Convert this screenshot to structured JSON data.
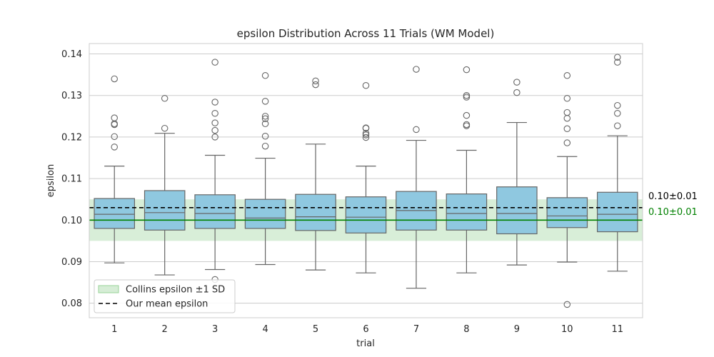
{
  "chart_data": {
    "type": "box",
    "title": "epsilon Distribution Across 11 Trials (WM Model)",
    "xlabel": "trial",
    "ylabel": "epsilon",
    "ylim": [
      0.0765,
      0.1425
    ],
    "yticks": [
      0.08,
      0.09,
      0.1,
      0.11,
      0.12,
      0.13,
      0.14
    ],
    "ytick_labels": [
      "0.08",
      "0.09",
      "0.10",
      "0.11",
      "0.12",
      "0.13",
      "0.14"
    ],
    "grid": true,
    "categories": [
      "1",
      "2",
      "3",
      "4",
      "5",
      "6",
      "7",
      "8",
      "9",
      "10",
      "11"
    ],
    "boxes": [
      {
        "trial": "1",
        "whisker_low": 0.0897,
        "q1": 0.098,
        "median": 0.1014,
        "q3": 0.1052,
        "whisker_high": 0.113,
        "outliers": [
          0.134,
          0.1246,
          0.1232,
          0.123,
          0.1201,
          0.1176
        ]
      },
      {
        "trial": "2",
        "whisker_low": 0.0868,
        "q1": 0.0976,
        "median": 0.1018,
        "q3": 0.1071,
        "whisker_high": 0.1209,
        "outliers": [
          0.1293,
          0.1221
        ]
      },
      {
        "trial": "3",
        "whisker_low": 0.0881,
        "q1": 0.098,
        "median": 0.1016,
        "q3": 0.1061,
        "whisker_high": 0.1156,
        "outliers": [
          0.138,
          0.1284,
          0.1257,
          0.1234,
          0.1216,
          0.12,
          0.0857
        ]
      },
      {
        "trial": "4",
        "whisker_low": 0.0893,
        "q1": 0.098,
        "median": 0.1005,
        "q3": 0.105,
        "whisker_high": 0.1149,
        "outliers": [
          0.1348,
          0.1286,
          0.125,
          0.1244,
          0.1232,
          0.1202,
          0.1178
        ]
      },
      {
        "trial": "5",
        "whisker_low": 0.088,
        "q1": 0.0975,
        "median": 0.1008,
        "q3": 0.1062,
        "whisker_high": 0.1183,
        "outliers": [
          0.1335,
          0.1326
        ]
      },
      {
        "trial": "6",
        "whisker_low": 0.0873,
        "q1": 0.0969,
        "median": 0.1007,
        "q3": 0.1056,
        "whisker_high": 0.113,
        "outliers": [
          0.1324,
          0.1222,
          0.1221,
          0.1209,
          0.1205,
          0.1199
        ]
      },
      {
        "trial": "7",
        "whisker_low": 0.0836,
        "q1": 0.0976,
        "median": 0.1023,
        "q3": 0.1069,
        "whisker_high": 0.1192,
        "outliers": [
          0.1363,
          0.1218
        ]
      },
      {
        "trial": "8",
        "whisker_low": 0.0873,
        "q1": 0.0976,
        "median": 0.1016,
        "q3": 0.1063,
        "whisker_high": 0.1168,
        "outliers": [
          0.1362,
          0.13,
          0.1296,
          0.1252,
          0.123,
          0.1227
        ]
      },
      {
        "trial": "9",
        "whisker_low": 0.0892,
        "q1": 0.0967,
        "median": 0.1016,
        "q3": 0.108,
        "whisker_high": 0.1235,
        "outliers": [
          0.1332,
          0.1307
        ]
      },
      {
        "trial": "10",
        "whisker_low": 0.0899,
        "q1": 0.0982,
        "median": 0.101,
        "q3": 0.1054,
        "whisker_high": 0.1153,
        "outliers": [
          0.1348,
          0.1293,
          0.1259,
          0.1245,
          0.122,
          0.1186,
          0.0797
        ]
      },
      {
        "trial": "11",
        "whisker_low": 0.0877,
        "q1": 0.0972,
        "median": 0.1014,
        "q3": 0.1067,
        "whisker_high": 0.1203,
        "outliers": [
          0.1392,
          0.138,
          0.1276,
          0.1257,
          0.1227
        ]
      }
    ],
    "reference_band": {
      "label": "Collins epsilon ±1 SD",
      "low": 0.095,
      "high": 0.105,
      "color": "#98d398"
    },
    "reference_lines": [
      {
        "label": "Our mean epsilon",
        "value": 0.103,
        "style": "dashed",
        "color": "#000000",
        "annotation": "0.10±0.01",
        "annotation_color": "#000000"
      },
      {
        "value": 0.1,
        "style": "solid",
        "color": "#008000",
        "annotation": "0.10±0.01",
        "annotation_color": "#008000"
      }
    ],
    "box_color": "#8fc8e0",
    "edge_color": "#666666",
    "legend": {
      "placement": "lower-left",
      "entries": [
        {
          "label": "Collins epsilon ±1 SD",
          "kind": "patch",
          "color": "#98d398"
        },
        {
          "label": "Our mean epsilon",
          "kind": "dashed-line",
          "color": "#000000"
        }
      ]
    }
  }
}
